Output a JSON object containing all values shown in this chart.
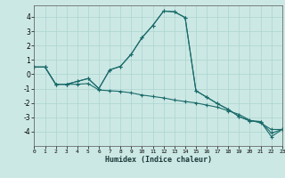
{
  "xlabel": "Humidex (Indice chaleur)",
  "bg_color": "#cce8e4",
  "grid_color": "#aad4d0",
  "line_color": "#1a6b6b",
  "xlim": [
    0,
    23
  ],
  "ylim": [
    -5,
    4.8
  ],
  "yticks": [
    -4,
    -3,
    -2,
    -1,
    0,
    1,
    2,
    3,
    4
  ],
  "xticks": [
    0,
    1,
    2,
    3,
    4,
    5,
    6,
    7,
    8,
    9,
    10,
    11,
    12,
    13,
    14,
    15,
    16,
    17,
    18,
    19,
    20,
    21,
    22,
    23
  ],
  "line1_x": [
    0,
    1,
    2,
    3,
    4,
    5,
    6,
    7,
    8,
    9,
    10,
    11,
    12,
    13,
    14,
    15,
    16,
    17,
    18,
    19,
    20,
    21,
    22,
    23
  ],
  "line1_y": [
    0.5,
    0.5,
    -0.7,
    -0.7,
    -0.7,
    -0.65,
    -1.1,
    -1.15,
    -1.2,
    -1.3,
    -1.45,
    -1.55,
    -1.65,
    -1.8,
    -1.9,
    -2.0,
    -2.15,
    -2.3,
    -2.55,
    -2.8,
    -3.2,
    -3.4,
    -3.85,
    -3.85
  ],
  "line2_x": [
    0,
    1,
    2,
    3,
    4,
    5,
    6,
    7,
    8,
    9,
    10,
    11,
    12,
    13,
    14,
    15,
    16,
    17,
    18,
    19,
    20,
    21,
    22,
    23
  ],
  "line2_y": [
    0.5,
    0.5,
    -0.7,
    -0.7,
    -0.5,
    -0.3,
    -1.0,
    0.3,
    0.55,
    1.4,
    2.55,
    3.4,
    4.4,
    4.35,
    3.95,
    -1.15,
    -1.6,
    -2.05,
    -2.45,
    -2.95,
    -3.25,
    -3.3,
    -4.35,
    -3.85
  ],
  "line3_x": [
    0,
    1,
    2,
    3,
    4,
    5,
    6,
    7,
    8,
    9,
    10,
    11,
    12,
    13,
    14,
    15,
    16,
    17,
    18,
    19,
    20,
    21,
    22,
    23
  ],
  "line3_y": [
    0.5,
    0.5,
    -0.7,
    -0.7,
    -0.5,
    -0.3,
    -1.0,
    0.3,
    0.55,
    1.4,
    2.55,
    3.4,
    4.4,
    4.35,
    3.95,
    -1.15,
    -1.6,
    -2.05,
    -2.45,
    -2.95,
    -3.25,
    -3.3,
    -4.1,
    -3.85
  ]
}
